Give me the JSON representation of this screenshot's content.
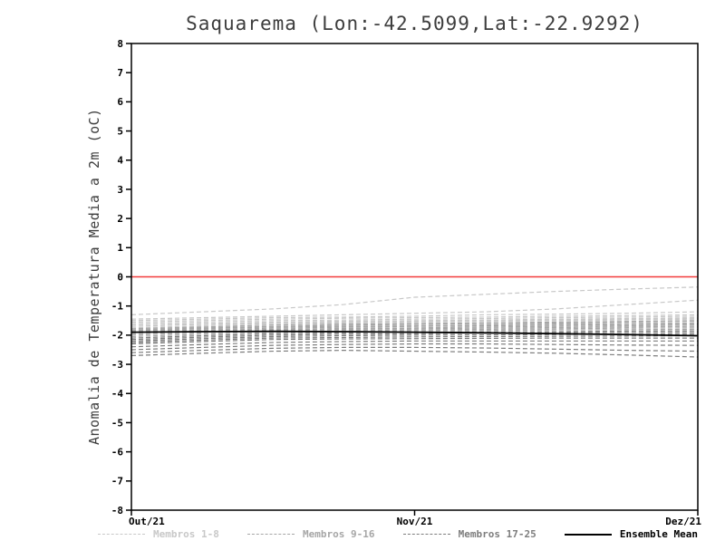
{
  "chart_data": {
    "type": "line",
    "title": "Saquarema (Lon:-42.5099,Lat:-22.9292)",
    "ylabel": "Anomalia de Temperatura Media a 2m (oC)",
    "xlabel": "",
    "ylim": [
      -8,
      8
    ],
    "ytick_step": 1,
    "xlim": [
      0,
      2
    ],
    "x": [
      0,
      0.25,
      0.5,
      0.75,
      1.0,
      1.25,
      1.5,
      1.75,
      2.0
    ],
    "xticks": [
      {
        "value": 0,
        "label": "Out/21"
      },
      {
        "value": 1,
        "label": "Nov/21"
      },
      {
        "value": 2,
        "label": "Dez/21"
      }
    ],
    "grid": false,
    "legend_position": "bottom",
    "zero_line": {
      "value": 0,
      "color": "#f23b3b"
    },
    "frame_color": "#000000",
    "groups": {
      "members_1_8": {
        "color": "#c8c8c8",
        "style": "dashed"
      },
      "members_9_16": {
        "color": "#a6a6a6",
        "style": "dashed"
      },
      "members_17_25": {
        "color": "#7d7d7d",
        "style": "dashed"
      },
      "mean": {
        "color": "#000000",
        "style": "solid"
      }
    },
    "series": [
      {
        "name": "Membro 1",
        "group": "members_1_8",
        "values": [
          -1.3,
          -1.2,
          -1.1,
          -0.95,
          -0.7,
          -0.6,
          -0.5,
          -0.42,
          -0.35
        ]
      },
      {
        "name": "Membro 2",
        "group": "members_1_8",
        "values": [
          -1.45,
          -1.4,
          -1.35,
          -1.3,
          -1.25,
          -1.2,
          -1.1,
          -0.95,
          -0.8
        ]
      },
      {
        "name": "Membro 3",
        "group": "members_1_8",
        "values": [
          -1.5,
          -1.45,
          -1.4,
          -1.38,
          -1.35,
          -1.3,
          -1.28,
          -1.25,
          -1.2
        ]
      },
      {
        "name": "Membro 4",
        "group": "members_1_8",
        "values": [
          -1.55,
          -1.5,
          -1.45,
          -1.42,
          -1.4,
          -1.38,
          -1.35,
          -1.33,
          -1.3
        ]
      },
      {
        "name": "Membro 5",
        "group": "members_1_8",
        "values": [
          -1.6,
          -1.55,
          -1.5,
          -1.48,
          -1.45,
          -1.43,
          -1.4,
          -1.38,
          -1.35
        ]
      },
      {
        "name": "Membro 6",
        "group": "members_1_8",
        "values": [
          -1.65,
          -1.6,
          -1.55,
          -1.52,
          -1.5,
          -1.48,
          -1.45,
          -1.43,
          -1.4
        ]
      },
      {
        "name": "Membro 7",
        "group": "members_1_8",
        "values": [
          -1.7,
          -1.63,
          -1.58,
          -1.55,
          -1.52,
          -1.5,
          -1.48,
          -1.45,
          -1.42
        ]
      },
      {
        "name": "Membro 8",
        "group": "members_1_8",
        "values": [
          -1.75,
          -1.68,
          -1.6,
          -1.58,
          -1.55,
          -1.53,
          -1.5,
          -1.48,
          -1.45
        ]
      },
      {
        "name": "Membro 9",
        "group": "members_9_16",
        "values": [
          -1.78,
          -1.72,
          -1.65,
          -1.62,
          -1.6,
          -1.58,
          -1.55,
          -1.53,
          -1.5
        ]
      },
      {
        "name": "Membro 10",
        "group": "members_9_16",
        "values": [
          -1.82,
          -1.75,
          -1.7,
          -1.66,
          -1.63,
          -1.6,
          -1.58,
          -1.55,
          -1.52
        ]
      },
      {
        "name": "Membro 11",
        "group": "members_9_16",
        "values": [
          -1.85,
          -1.78,
          -1.72,
          -1.7,
          -1.68,
          -1.65,
          -1.62,
          -1.6,
          -1.58
        ]
      },
      {
        "name": "Membro 12",
        "group": "members_9_16",
        "values": [
          -1.88,
          -1.82,
          -1.76,
          -1.73,
          -1.7,
          -1.68,
          -1.66,
          -1.64,
          -1.62
        ]
      },
      {
        "name": "Membro 13",
        "group": "members_9_16",
        "values": [
          -1.9,
          -1.85,
          -1.8,
          -1.77,
          -1.75,
          -1.72,
          -1.7,
          -1.68,
          -1.65
        ]
      },
      {
        "name": "Membro 14",
        "group": "members_9_16",
        "values": [
          -1.95,
          -1.88,
          -1.83,
          -1.8,
          -1.78,
          -1.76,
          -1.74,
          -1.72,
          -1.7
        ]
      },
      {
        "name": "Membro 15",
        "group": "members_9_16",
        "values": [
          -2.0,
          -1.92,
          -1.86,
          -1.84,
          -1.82,
          -1.8,
          -1.78,
          -1.76,
          -1.75
        ]
      },
      {
        "name": "Membro 16",
        "group": "members_9_16",
        "values": [
          -2.05,
          -1.97,
          -1.9,
          -1.88,
          -1.86,
          -1.84,
          -1.82,
          -1.81,
          -1.8
        ]
      },
      {
        "name": "Membro 17",
        "group": "members_17_25",
        "values": [
          -2.1,
          -2.02,
          -1.95,
          -1.92,
          -1.9,
          -1.89,
          -1.88,
          -1.86,
          -1.85
        ]
      },
      {
        "name": "Membro 18",
        "group": "members_17_25",
        "values": [
          -2.15,
          -2.07,
          -2.0,
          -1.97,
          -1.95,
          -1.93,
          -1.92,
          -1.91,
          -1.9
        ]
      },
      {
        "name": "Membro 19",
        "group": "members_17_25",
        "values": [
          -2.2,
          -2.12,
          -2.05,
          -2.02,
          -2.0,
          -1.99,
          -1.98,
          -1.97,
          -1.96
        ]
      },
      {
        "name": "Membro 20",
        "group": "members_17_25",
        "values": [
          -2.25,
          -2.17,
          -2.1,
          -2.08,
          -2.06,
          -2.05,
          -2.04,
          -2.03,
          -2.02
        ]
      },
      {
        "name": "Membro 21",
        "group": "members_17_25",
        "values": [
          -2.3,
          -2.22,
          -2.15,
          -2.13,
          -2.12,
          -2.11,
          -2.1,
          -2.1,
          -2.1
        ]
      },
      {
        "name": "Membro 22",
        "group": "members_17_25",
        "values": [
          -2.4,
          -2.32,
          -2.25,
          -2.22,
          -2.2,
          -2.2,
          -2.2,
          -2.2,
          -2.2
        ]
      },
      {
        "name": "Membro 23",
        "group": "members_17_25",
        "values": [
          -2.5,
          -2.42,
          -2.35,
          -2.32,
          -2.3,
          -2.3,
          -2.32,
          -2.34,
          -2.35
        ]
      },
      {
        "name": "Membro 24",
        "group": "members_17_25",
        "values": [
          -2.6,
          -2.52,
          -2.45,
          -2.42,
          -2.42,
          -2.44,
          -2.48,
          -2.52,
          -2.55
        ]
      },
      {
        "name": "Membro 25",
        "group": "members_17_25",
        "values": [
          -2.7,
          -2.62,
          -2.55,
          -2.52,
          -2.55,
          -2.58,
          -2.62,
          -2.68,
          -2.75
        ]
      },
      {
        "name": "Ensemble Mean",
        "group": "mean",
        "values": [
          -1.9,
          -1.88,
          -1.87,
          -1.88,
          -1.9,
          -1.92,
          -1.95,
          -1.98,
          -2.02
        ]
      }
    ],
    "legend": [
      {
        "label": "Membros 1-8",
        "style": "dashed",
        "color": "#c8c8c8"
      },
      {
        "label": "Membros 9-16",
        "style": "dashed",
        "color": "#a6a6a6"
      },
      {
        "label": "Membros 17-25",
        "style": "dashed",
        "color": "#7d7d7d"
      },
      {
        "label": "Ensemble Mean",
        "style": "solid",
        "color": "#000000"
      }
    ]
  }
}
